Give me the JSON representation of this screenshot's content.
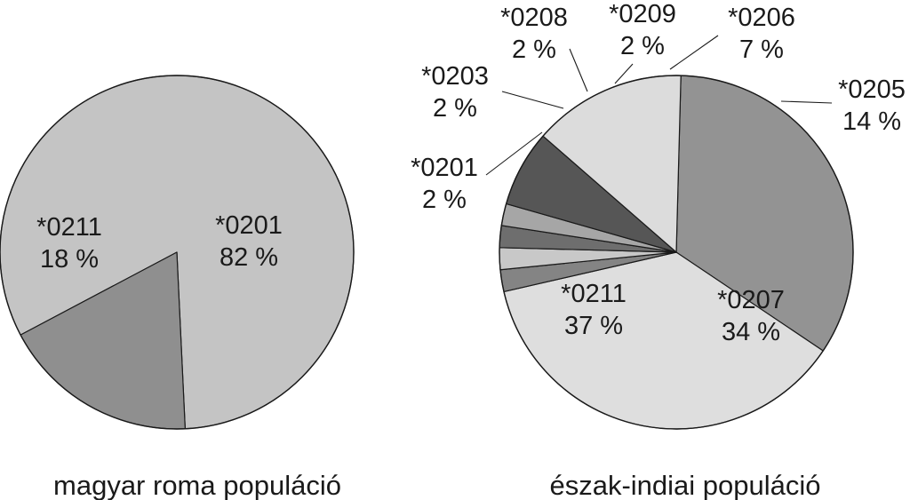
{
  "chart_data": [
    {
      "type": "pie",
      "caption": "magyar roma populáció",
      "slices": [
        {
          "label": "*0201",
          "value": 82,
          "value_text": "82 %",
          "color": "#c4c4c4"
        },
        {
          "label": "*0211",
          "value": 18,
          "value_text": "18 %",
          "color": "#8f8f8f"
        }
      ]
    },
    {
      "type": "pie",
      "caption": "észak-indiai populáció",
      "slices": [
        {
          "label": "*0207",
          "value": 34,
          "value_text": "34 %",
          "color": "#939393"
        },
        {
          "label": "*0211",
          "value": 37,
          "value_text": "37 %",
          "color": "#dedede"
        },
        {
          "label": "*0201",
          "value": 2,
          "value_text": "2 %",
          "color": "#848484"
        },
        {
          "label": "*0203",
          "value": 2,
          "value_text": "2 %",
          "color": "#c8c8c8"
        },
        {
          "label": "*0208",
          "value": 2,
          "value_text": "2 %",
          "color": "#6e6e6e"
        },
        {
          "label": "*0209",
          "value": 2,
          "value_text": "2 %",
          "color": "#a6a6a6"
        },
        {
          "label": "*0206",
          "value": 7,
          "value_text": "7 %",
          "color": "#565656"
        },
        {
          "label": "*0205",
          "value": 14,
          "value_text": "14 %",
          "color": "#dcdcdc"
        }
      ]
    }
  ]
}
